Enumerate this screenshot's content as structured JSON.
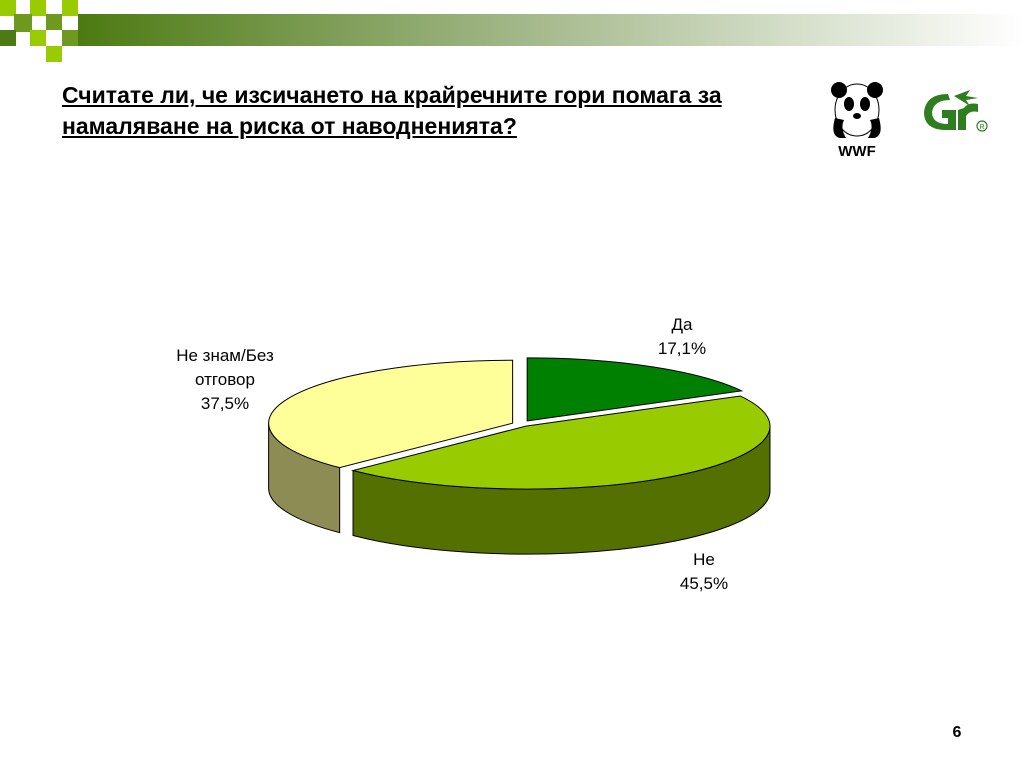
{
  "title": "Считате ли, че изсичането на крайречните гори помага за намаляване на риска от наводненията?",
  "logos": {
    "wwf_text": "WWF"
  },
  "slide_number": "6",
  "chart_data": {
    "type": "pie",
    "slices": [
      {
        "label": "Да",
        "value": 17.1,
        "value_label": "17,1%",
        "color": "#008000"
      },
      {
        "label": "Не",
        "value": 45.5,
        "value_label": "45,5%",
        "color": "#99cc00"
      },
      {
        "label": "Не знам/Без отговор",
        "value": 37.5,
        "value_label": "37,5%",
        "color": "#ffff99"
      }
    ]
  }
}
